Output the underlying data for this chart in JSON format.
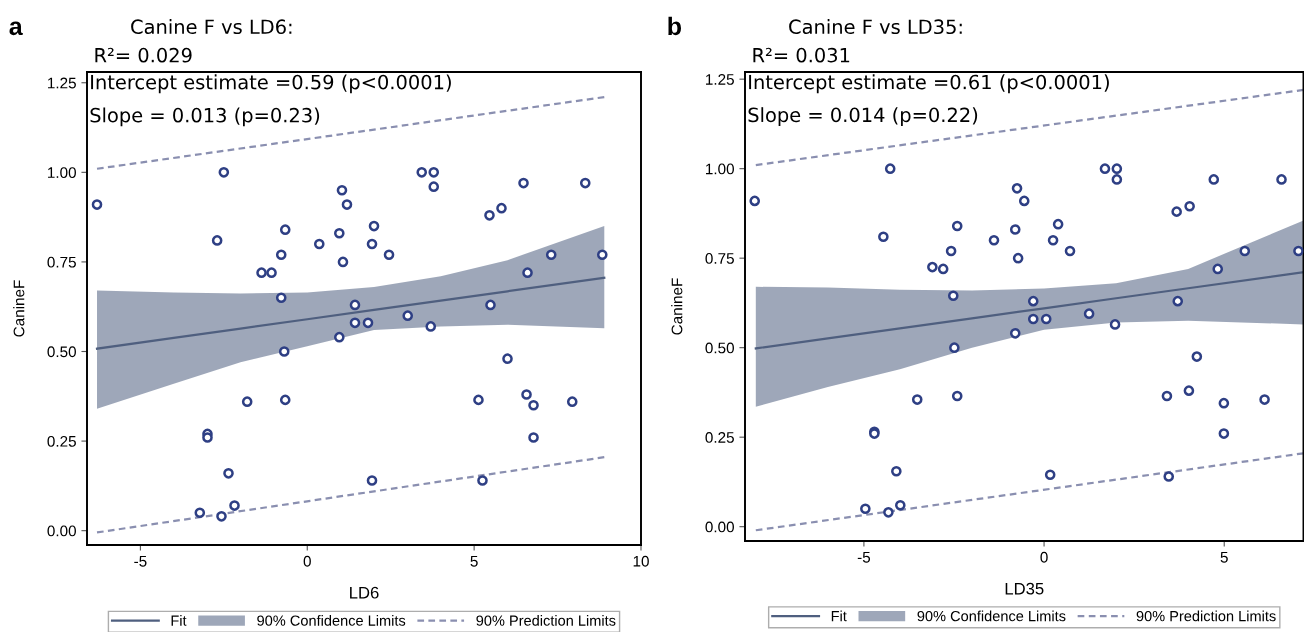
{
  "chart_data": [
    {
      "type": "scatter",
      "title": "Canine F vs LD6:",
      "subtitle": "R²= 0.029",
      "xlabel": "LD6",
      "ylabel": "CanineF",
      "annotations": [
        "a",
        "Intercept estimate =0.59 (p<0.0001)",
        "Slope = 0.013 (p=0.23)",
        "90% Confidence Limits"
      ],
      "xlim": [
        -6.6,
        10
      ],
      "xticks": [
        -5,
        0,
        5,
        10
      ],
      "ylim": [
        -0.04,
        1.28
      ],
      "yticks": [
        {
          "value": 0,
          "label": "0.00"
        },
        {
          "value": 0.25,
          "label": "0.25"
        },
        {
          "value": 0.5,
          "label": "0.50"
        },
        {
          "value": 0.75,
          "label": "0.75"
        },
        {
          "value": 1.0,
          "label": "1.00"
        },
        {
          "value": 1.25,
          "label": "1.25"
        }
      ],
      "grid": false,
      "legend": "bottom",
      "series": [
        {
          "type": "line",
          "name": "Fit",
          "color": "#4f5f7f",
          "line_style": "solid",
          "x": [
            -6.3,
            -4,
            -2,
            0,
            2,
            4,
            6,
            8.9
          ],
          "values": [
            0.508,
            0.538,
            0.564,
            0.59,
            0.616,
            0.642,
            0.668,
            0.706
          ],
          "lower": [
            0.34,
            0.41,
            0.47,
            0.515,
            0.56,
            0.57,
            0.575,
            0.565
          ],
          "upper": [
            0.67,
            0.665,
            0.662,
            0.665,
            0.68,
            0.71,
            0.755,
            0.85
          ]
        },
        {
          "type": "line",
          "name": "90% Prediction Limits",
          "color": "#8a8fb0",
          "line_style": "dashed",
          "x": [
            -6.3,
            8.9
          ],
          "values": [
            1.01,
            1.21
          ]
        },
        {
          "type": "line",
          "color": "#8a8fb0",
          "line_style": "dashed",
          "x": [
            -6.3,
            8.9
          ],
          "values": [
            -0.005,
            0.205
          ]
        },
        {
          "marker": "circle",
          "color": "#2e3f84",
          "x": [
            -6.3,
            -2.5,
            -2.7,
            -0.66,
            -0.78,
            -1.37,
            -1.07,
            -0.78,
            0.36,
            0.96,
            1.04,
            1.19,
            1.07,
            2.0,
            1.94,
            2.45,
            3.43,
            3.79,
            3.79,
            6.48,
            8.33,
            5.46,
            5.82,
            7.31,
            8.84,
            6.6,
            1.43,
            5.49,
            1.43,
            1.82,
            3.01,
            3.7,
            0.96,
            -0.69,
            -1.8,
            -0.66,
            5.13,
            6.57,
            6.78,
            7.94,
            6.0,
            6.78,
            -2.99,
            -2.99,
            -2.36,
            1.94,
            5.25,
            -3.22,
            -2.57,
            -2.18
          ],
          "values": [
            0.91,
            1.0,
            0.81,
            0.84,
            0.77,
            0.72,
            0.72,
            0.65,
            0.8,
            0.83,
            0.95,
            0.91,
            0.75,
            0.85,
            0.8,
            0.77,
            1.0,
            1.0,
            0.96,
            0.97,
            0.97,
            0.88,
            0.9,
            0.77,
            0.77,
            0.72,
            0.63,
            0.63,
            0.58,
            0.58,
            0.6,
            0.57,
            0.54,
            0.5,
            0.36,
            0.365,
            0.365,
            0.38,
            0.35,
            0.36,
            0.48,
            0.26,
            0.27,
            0.26,
            0.16,
            0.14,
            0.14,
            0.05,
            0.04,
            0.07
          ]
        }
      ]
    },
    {
      "type": "scatter",
      "title": "Canine F vs LD35:",
      "subtitle": "R²= 0.031",
      "xlabel": "LD35",
      "ylabel": "CanineF",
      "annotations": [
        "b",
        "Intercept estimate =0.61 (p<0.0001)",
        "Slope = 0.014 (p=0.22)",
        "90% Confidence Limits"
      ],
      "xlim": [
        -8.3,
        7.2
      ],
      "xticks": [
        -5,
        0,
        5
      ],
      "ylim": [
        -0.04,
        1.27
      ],
      "yticks": [
        {
          "value": 0,
          "label": "0.00"
        },
        {
          "value": 0.25,
          "label": "0.25"
        },
        {
          "value": 0.5,
          "label": "0.50"
        },
        {
          "value": 0.75,
          "label": "0.75"
        },
        {
          "value": 1.0,
          "label": "1.00"
        },
        {
          "value": 1.25,
          "label": "1.25"
        }
      ],
      "grid": false,
      "legend": "bottom",
      "series": [
        {
          "type": "line",
          "name": "Fit",
          "color": "#4f5f7f",
          "line_style": "solid",
          "x": [
            -8,
            -6,
            -4,
            -2,
            0,
            2,
            4,
            7.2
          ],
          "values": [
            0.498,
            0.526,
            0.554,
            0.582,
            0.61,
            0.638,
            0.666,
            0.711
          ],
          "lower": [
            0.335,
            0.39,
            0.44,
            0.5,
            0.55,
            0.57,
            0.575,
            0.565
          ],
          "upper": [
            0.67,
            0.668,
            0.662,
            0.66,
            0.665,
            0.68,
            0.72,
            0.855
          ]
        },
        {
          "type": "line",
          "name": "90% Prediction Limits",
          "color": "#8a8fb0",
          "line_style": "dashed",
          "x": [
            -8,
            7.2
          ],
          "values": [
            1.01,
            1.22
          ]
        },
        {
          "type": "line",
          "color": "#8a8fb0",
          "line_style": "dashed",
          "x": [
            -8,
            7.2
          ],
          "values": [
            -0.01,
            0.205
          ]
        },
        {
          "marker": "circle",
          "color": "#2e3f84",
          "x": [
            -8.03,
            -4.27,
            -4.46,
            -2.41,
            -2.58,
            -3.1,
            -2.8,
            -2.52,
            -1.39,
            -0.8,
            -0.75,
            -0.55,
            -0.72,
            0.39,
            0.25,
            0.72,
            1.69,
            2.02,
            2.02,
            4.71,
            6.59,
            3.68,
            4.04,
            5.57,
            7.06,
            4.82,
            -0.3,
            3.71,
            -0.3,
            0.06,
            1.25,
            1.97,
            -0.8,
            -2.49,
            -3.52,
            -2.41,
            3.41,
            4.02,
            4.99,
            6.12,
            4.24,
            4.99,
            -4.71,
            -4.71,
            -4.1,
            0.17,
            3.46,
            -4.96,
            -4.32,
            -3.99
          ],
          "values": [
            0.91,
            1.0,
            0.81,
            0.84,
            0.77,
            0.725,
            0.72,
            0.645,
            0.8,
            0.83,
            0.945,
            0.91,
            0.75,
            0.845,
            0.8,
            0.77,
            1.0,
            1.0,
            0.97,
            0.97,
            0.97,
            0.88,
            0.895,
            0.77,
            0.77,
            0.72,
            0.63,
            0.63,
            0.58,
            0.58,
            0.595,
            0.565,
            0.54,
            0.5,
            0.355,
            0.365,
            0.365,
            0.38,
            0.345,
            0.355,
            0.475,
            0.26,
            0.265,
            0.26,
            0.155,
            0.145,
            0.14,
            0.05,
            0.04,
            0.06
          ]
        }
      ]
    }
  ]
}
